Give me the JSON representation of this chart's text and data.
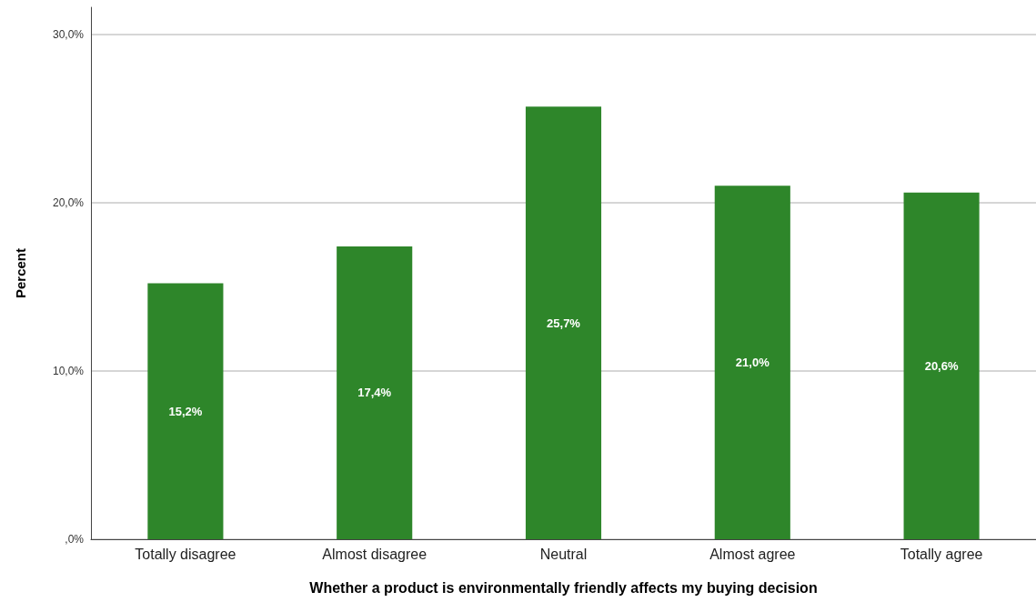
{
  "chart_data": {
    "type": "bar",
    "xlabel": "Whether a product is environmentally friendly affects my buying decision",
    "ylabel": "Percent",
    "categories": [
      "Totally disagree",
      "Almost disagree",
      "Neutral",
      "Almost agree",
      "Totally agree"
    ],
    "values": [
      15.2,
      17.4,
      25.7,
      21.0,
      20.6
    ],
    "value_labels": [
      "15,2%",
      "17,4%",
      "25,7%",
      "21,0%",
      "20,6%"
    ],
    "color": "#2e862a",
    "ylim": [
      0,
      31.6
    ],
    "yticks": [
      {
        "value": 0,
        "label": ",0%"
      },
      {
        "value": 10,
        "label": "10,0%"
      },
      {
        "value": 20,
        "label": "20,0%"
      },
      {
        "value": 30,
        "label": "30,0%"
      }
    ],
    "grid": "y"
  }
}
